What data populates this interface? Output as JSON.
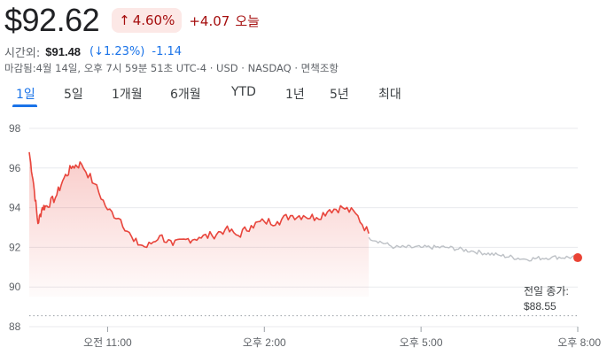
{
  "header": {
    "price": "$92.62",
    "change_pct": "4.60%",
    "change_abs": "+4.07",
    "today": "오늘"
  },
  "after_hours": {
    "label": "시간외:",
    "price": "$91.48",
    "pct": "(↓1.23%)",
    "delta": "-1.14"
  },
  "meta": "마감됨:4월 14일, 오후 7시 59분 51초 UTC-4 · USD · NASDAQ · 면책조항",
  "tabs": [
    {
      "label": "1일",
      "active": true
    },
    {
      "label": "5일",
      "active": false
    },
    {
      "label": "1개월",
      "active": false
    },
    {
      "label": "6개월",
      "active": false
    },
    {
      "label": "YTD",
      "active": false
    },
    {
      "label": "1년",
      "active": false
    },
    {
      "label": "5년",
      "active": false
    },
    {
      "label": "최대",
      "active": false
    }
  ],
  "colors": {
    "up": "#e8453c",
    "after_hours_line": "#bdc1c6",
    "accent": "#1a73e8"
  },
  "chart_data": {
    "type": "line",
    "ylim": [
      88,
      98
    ],
    "y_ticks": [
      "98",
      "96",
      "94",
      "92",
      "90",
      "88"
    ],
    "x_ticks": [
      "오전 11:00",
      "오후 2:00",
      "오후 5:00",
      "오후 8:00"
    ],
    "previous_close": {
      "label": "전일 종가:",
      "value": "$88.55",
      "y": 88.55
    },
    "regular_session": {
      "x": [
        "09:30",
        "09:35",
        "09:40",
        "09:45",
        "09:50",
        "10:00",
        "10:10",
        "10:20",
        "10:30",
        "10:45",
        "11:00",
        "11:15",
        "11:30",
        "11:45",
        "12:00",
        "12:15",
        "12:30",
        "12:45",
        "13:00",
        "13:15",
        "13:30",
        "13:45",
        "14:00",
        "14:15",
        "14:30",
        "14:45",
        "15:00",
        "15:15",
        "15:30",
        "15:45",
        "16:00"
      ],
      "y": [
        96.8,
        95.2,
        93.2,
        94.0,
        94.1,
        94.5,
        95.5,
        96.1,
        96.2,
        95.2,
        93.9,
        93.4,
        92.3,
        92.0,
        92.6,
        92.1,
        92.4,
        92.5,
        92.6,
        92.9,
        92.6,
        93.1,
        93.3,
        93.3,
        93.6,
        93.6,
        93.5,
        93.9,
        94.0,
        93.7,
        92.7
      ]
    },
    "after_hours_session": {
      "x": [
        "16:00",
        "16:30",
        "17:00",
        "17:30",
        "18:00",
        "18:30",
        "19:00",
        "19:30",
        "20:00"
      ],
      "y": [
        92.5,
        92.0,
        92.0,
        92.0,
        91.8,
        91.6,
        91.4,
        91.5,
        91.5
      ]
    },
    "last_point": {
      "x": "20:00",
      "y": 91.48
    },
    "grid": true
  }
}
